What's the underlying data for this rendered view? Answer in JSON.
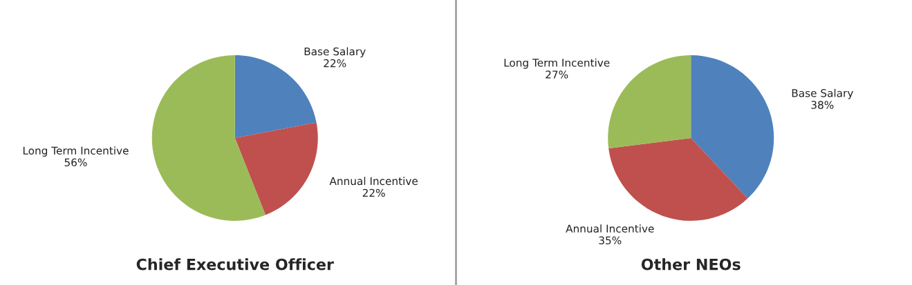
{
  "chart_data": [
    {
      "type": "pie",
      "title": "Chief Executive Officer",
      "categories": [
        "Base Salary",
        "Annual Incentive",
        "Long Term Incentive"
      ],
      "values": [
        22,
        22,
        56
      ],
      "value_labels": [
        "22%",
        "22%",
        "56%"
      ],
      "colors": [
        "#4f81bd",
        "#c0504d",
        "#9bbb59"
      ],
      "legend": false
    },
    {
      "type": "pie",
      "title": "Other NEOs",
      "categories": [
        "Base Salary",
        "Annual Incentive",
        "Long Term Incentive"
      ],
      "values": [
        38,
        35,
        27
      ],
      "value_labels": [
        "38%",
        "35%",
        "27%"
      ],
      "colors": [
        "#4f81bd",
        "#c0504d",
        "#9bbb59"
      ],
      "legend": false
    }
  ]
}
